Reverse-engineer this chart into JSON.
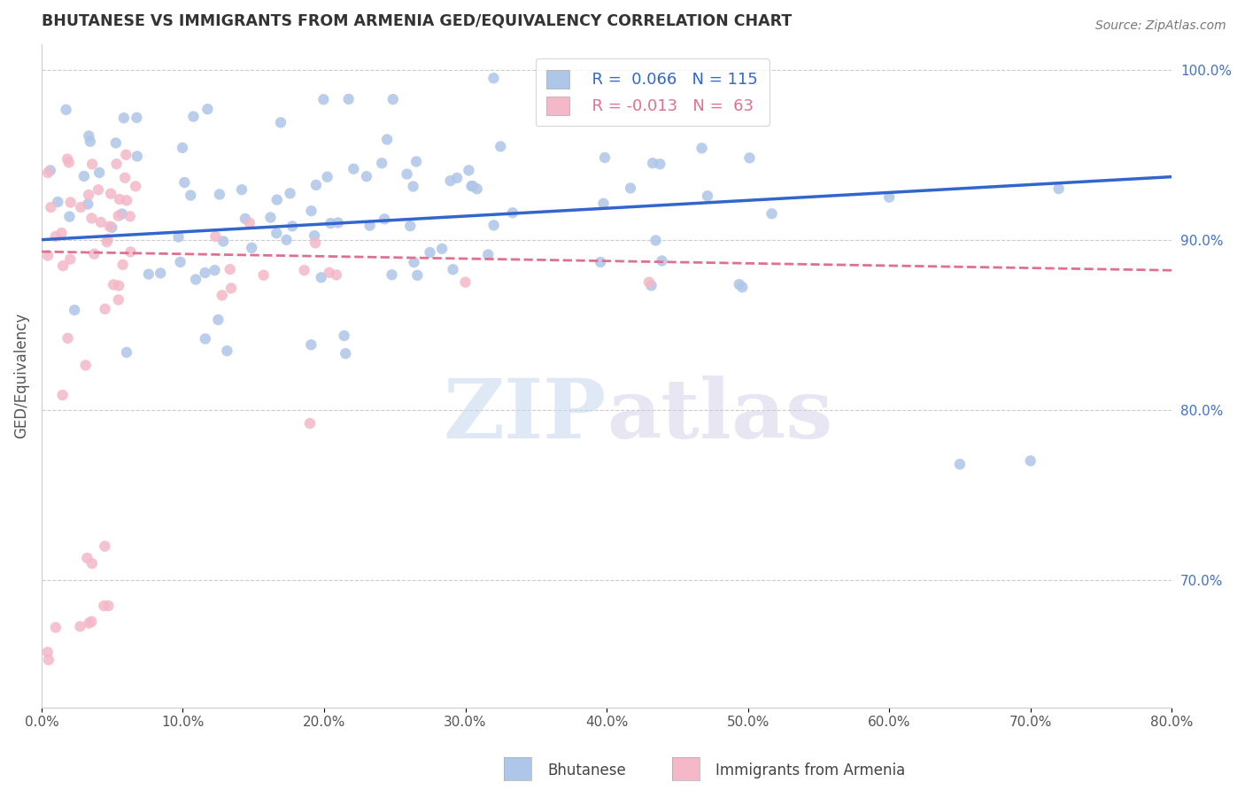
{
  "title": "BHUTANESE VS IMMIGRANTS FROM ARMENIA GED/EQUIVALENCY CORRELATION CHART",
  "source": "Source: ZipAtlas.com",
  "ylabel": "GED/Equivalency",
  "watermark_zip": "ZIP",
  "watermark_atlas": "atlas",
  "bg_color": "#ffffff",
  "scatter_size": 80,
  "blue_color": "#aec6e8",
  "pink_color": "#f4b8c8",
  "blue_line_color": "#3366cc",
  "pink_line_color": "#e07090",
  "right_axis_color": "#4472c4",
  "grid_color": "#cccccc",
  "title_color": "#333333",
  "xlim": [
    0.0,
    0.8
  ],
  "ylim": [
    0.625,
    1.015
  ],
  "blue_line_x": [
    0.0,
    0.8
  ],
  "blue_line_y": [
    0.9,
    0.937
  ],
  "pink_line_x": [
    0.0,
    0.8
  ],
  "pink_line_y": [
    0.893,
    0.882
  ],
  "right_ytick_vals": [
    1.0,
    0.9,
    0.8,
    0.7
  ],
  "right_ytick_labels": [
    "100.0%",
    "90.0%",
    "80.0%",
    "70.0%"
  ],
  "legend_blue_label": "  R =  0.066   N = 115",
  "legend_pink_label": "  R = -0.013   N =  63",
  "bottom_label_blue": "Bhutanese",
  "bottom_label_pink": "Immigrants from Armenia"
}
